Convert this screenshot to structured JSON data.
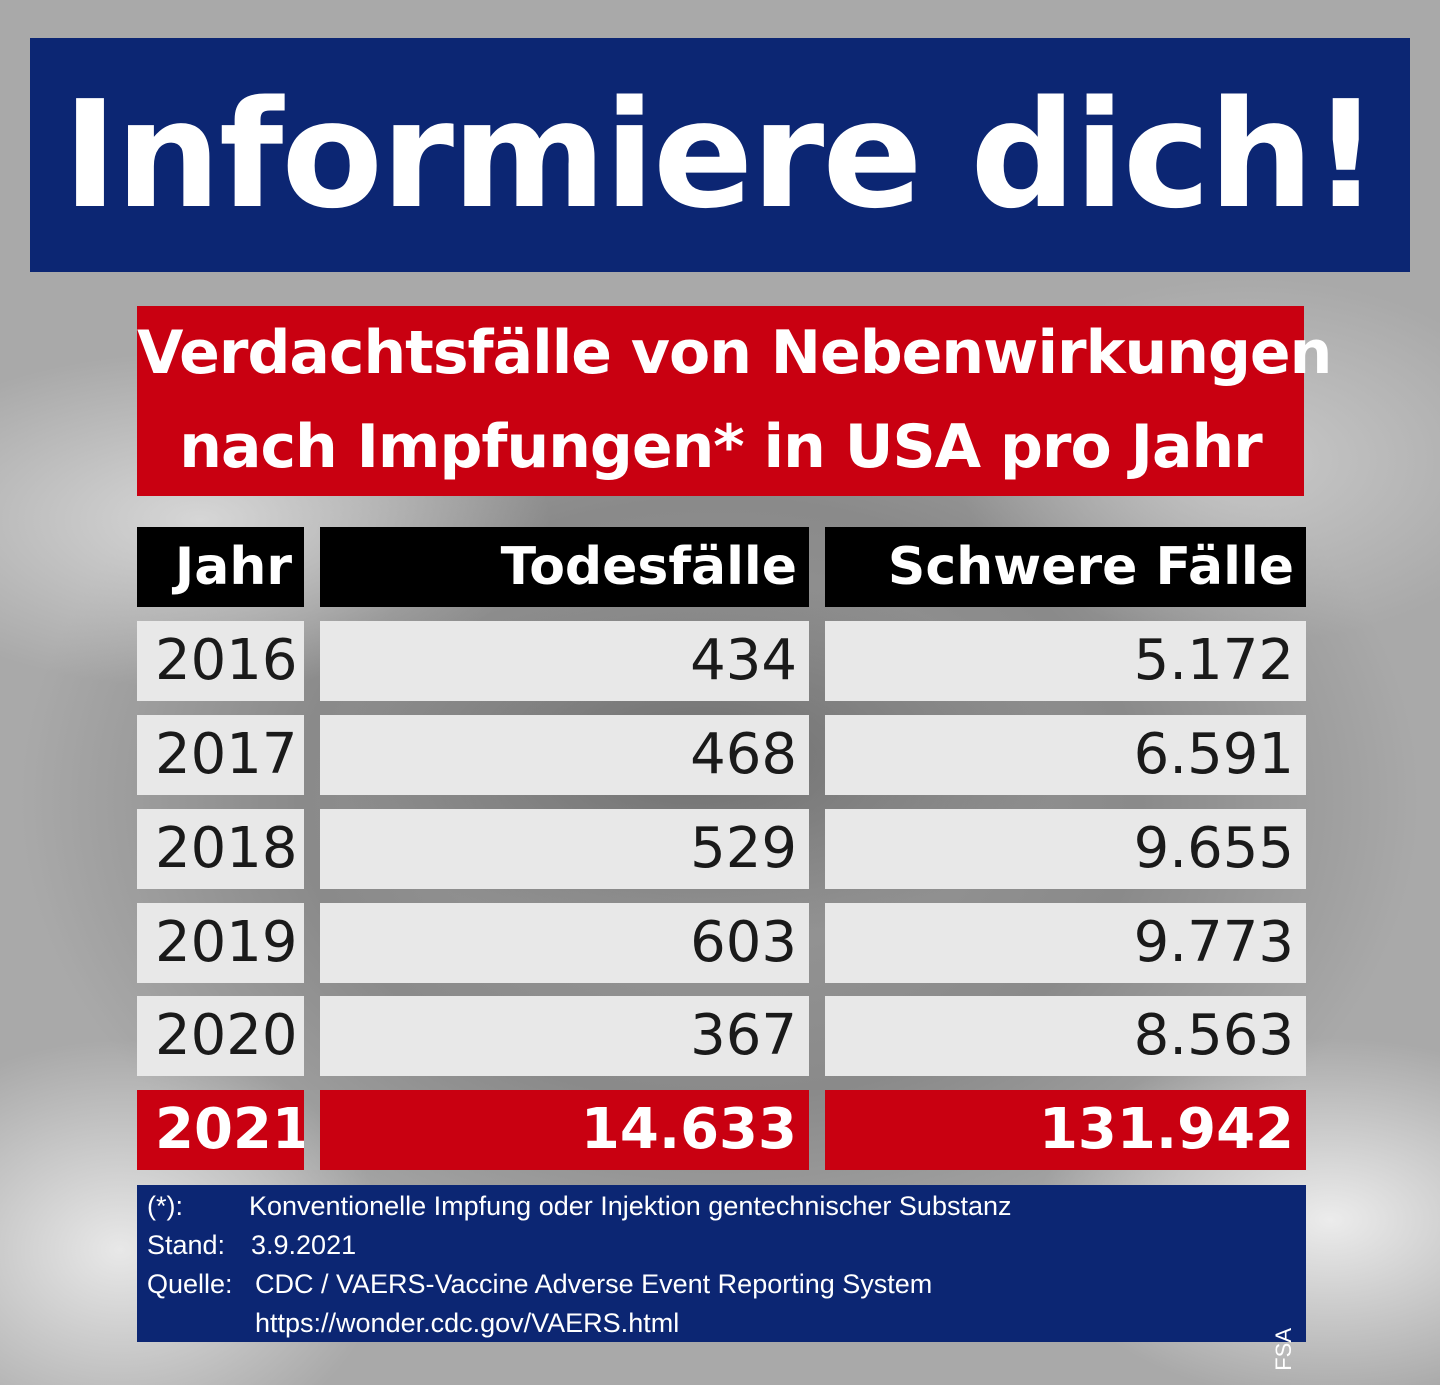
{
  "headline": "Informiere dich!",
  "subtitle": {
    "line1": "Verdachtsfälle von Nebenwirkungen",
    "line2": "nach Impfungen* in USA pro Jahr"
  },
  "table": {
    "headers": [
      "Jahr",
      "Todesfälle",
      "Schwere Fälle"
    ],
    "rows": [
      [
        "2016",
        "434",
        "5.172"
      ],
      [
        "2017",
        "468",
        "6.591"
      ],
      [
        "2018",
        "529",
        "9.655"
      ],
      [
        "2019",
        "603",
        "9.773"
      ],
      [
        "2020",
        "367",
        "8.563"
      ]
    ],
    "highlight_row": [
      "2021",
      "14.633",
      "131.942"
    ]
  },
  "footer": {
    "note_label": "(*):",
    "note_text": "Konventionelle Impfung oder Injektion gentechnischer Substanz",
    "stand_label": "Stand:",
    "stand_value": "3.9.2021",
    "source_label": "Quelle:",
    "source_text": "CDC / VAERS-Vaccine Adverse Event Reporting System",
    "source_url": "https://wonder.cdc.gov/VAERS.html",
    "credit": "FSA"
  },
  "colors": {
    "navy": "#0c2673",
    "red": "#c90011",
    "header_black": "#000000",
    "row_gray": "#e8e8e8"
  }
}
